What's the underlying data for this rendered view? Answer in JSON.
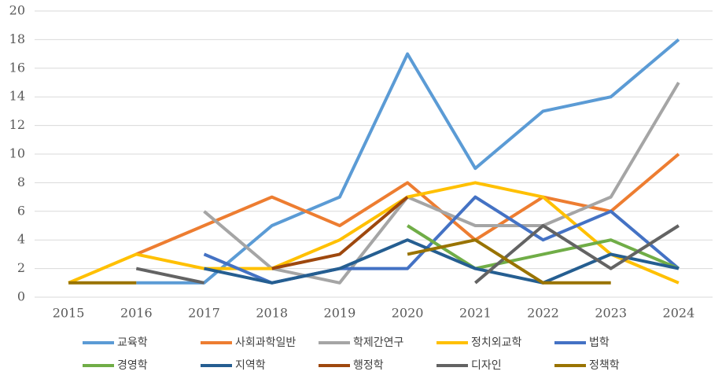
{
  "chart_data": {
    "type": "line",
    "categories": [
      "2015",
      "2016",
      "2017",
      "2018",
      "2019",
      "2020",
      "2021",
      "2022",
      "2023",
      "2024"
    ],
    "ylim": [
      0,
      20
    ],
    "yticks": [
      0,
      2,
      4,
      6,
      8,
      10,
      12,
      14,
      16,
      18,
      20
    ],
    "grid": true,
    "legend": "bottom",
    "series": [
      {
        "name": "교육학",
        "color": "#5b9bd5",
        "values": [
          null,
          1,
          1,
          5,
          7,
          17,
          9,
          13,
          14,
          18
        ]
      },
      {
        "name": "사회과학일반",
        "color": "#ed7d31",
        "values": [
          null,
          3,
          5,
          7,
          5,
          8,
          4,
          7,
          6,
          10
        ]
      },
      {
        "name": "학제간연구",
        "color": "#a5a5a5",
        "values": [
          null,
          null,
          6,
          2,
          1,
          7,
          5,
          5,
          7,
          15
        ]
      },
      {
        "name": "정치외교학",
        "color": "#ffc000",
        "values": [
          1,
          3,
          2,
          2,
          4,
          7,
          8,
          7,
          3,
          1
        ]
      },
      {
        "name": "법학",
        "color": "#4472c4",
        "values": [
          null,
          null,
          3,
          1,
          2,
          2,
          7,
          4,
          6,
          2
        ]
      },
      {
        "name": "경영학",
        "color": "#70ad47",
        "values": [
          null,
          null,
          null,
          null,
          null,
          5,
          2,
          3,
          4,
          2
        ]
      },
      {
        "name": "지역학",
        "color": "#255e91",
        "values": [
          null,
          null,
          2,
          1,
          2,
          4,
          2,
          1,
          3,
          2
        ]
      },
      {
        "name": "행정학",
        "color": "#9e480e",
        "values": [
          null,
          null,
          null,
          2,
          3,
          7,
          null,
          null,
          null,
          null
        ]
      },
      {
        "name": "디자인",
        "color": "#636363",
        "values": [
          null,
          2,
          1,
          null,
          null,
          null,
          1,
          5,
          2,
          5
        ]
      },
      {
        "name": "정책학",
        "color": "#997300",
        "values": [
          1,
          1,
          null,
          null,
          null,
          3,
          4,
          1,
          1,
          null
        ]
      }
    ]
  }
}
